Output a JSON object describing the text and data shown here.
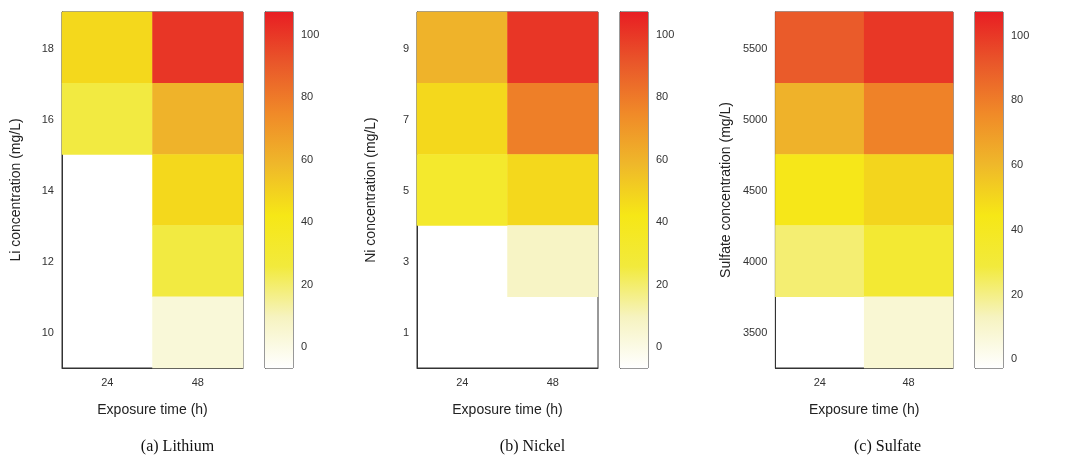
{
  "chart_data": [
    {
      "type": "heatmap",
      "title": "(a) Lithium",
      "xlabel": "Exposure time (h)",
      "ylabel": "Li concentration (mg/L)",
      "categories": [
        "24",
        "48"
      ],
      "y_categories": [
        "18",
        "16",
        "14",
        "12",
        "10"
      ],
      "cells": [
        [
          47,
          100
        ],
        [
          25,
          60
        ],
        [
          null,
          47
        ],
        [
          null,
          25
        ],
        [
          null,
          3
        ]
      ],
      "clim": [
        -7,
        107
      ],
      "cticks": [
        0,
        20,
        40,
        60,
        80,
        100
      ]
    },
    {
      "type": "heatmap",
      "title": "(b) Nickel",
      "xlabel": "Exposure time (h)",
      "ylabel": "Ni concentration (mg/L)",
      "categories": [
        "24",
        "48"
      ],
      "y_categories": [
        "9",
        "7",
        "5",
        "3",
        "1"
      ],
      "cells": [
        [
          60,
          100
        ],
        [
          47,
          78
        ],
        [
          32,
          47
        ],
        [
          null,
          8
        ],
        [
          null,
          null
        ]
      ],
      "clim": [
        -7,
        107
      ],
      "cticks": [
        0,
        20,
        40,
        60,
        80,
        100
      ]
    },
    {
      "type": "heatmap",
      "title": "(c) Sulfate",
      "xlabel": "Exposure time (h)",
      "ylabel": "Sulfate concentration (mg/L)",
      "categories": [
        "24",
        "48"
      ],
      "y_categories": [
        "5500",
        "5000",
        "4500",
        "4000",
        "3500"
      ],
      "cells": [
        [
          90,
          100
        ],
        [
          62,
          78
        ],
        [
          43,
          50
        ],
        [
          22,
          32
        ],
        [
          null,
          8
        ]
      ],
      "clim": [
        -3,
        107
      ],
      "cticks": [
        0,
        20,
        40,
        60,
        80,
        100
      ]
    }
  ]
}
